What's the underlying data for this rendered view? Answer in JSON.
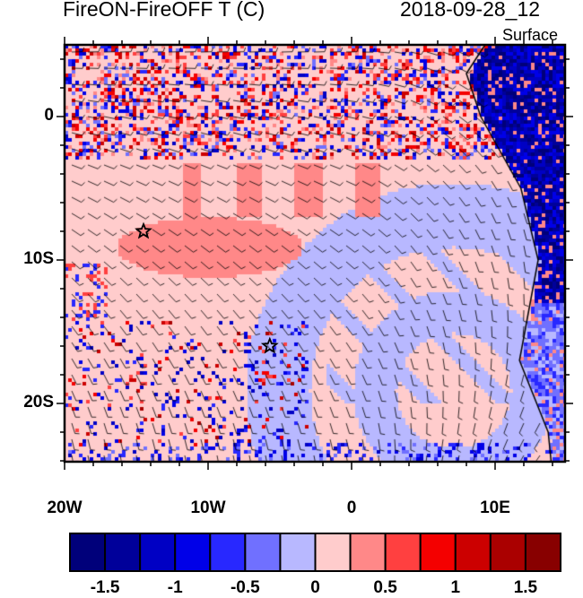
{
  "title_left": "FireON-FireOFF T (C)",
  "title_right": "2018-09-28_12",
  "level_label": "Surface",
  "chart_data": {
    "type": "heatmap",
    "variable": "Temperature difference FireON minus FireOFF",
    "units": "C",
    "lon_range": [
      -20,
      15
    ],
    "lat_range": [
      -24,
      5
    ],
    "x_ticks": [
      "20W",
      "10W",
      "0",
      "10E"
    ],
    "x_tick_values": [
      -20,
      -10,
      0,
      10
    ],
    "y_ticks": [
      "0",
      "10S",
      "20S"
    ],
    "y_tick_values": [
      0,
      -10,
      -20
    ],
    "colorbar": {
      "levels": [
        -1.5,
        -1.25,
        -1,
        -0.75,
        -0.5,
        -0.25,
        0,
        0.25,
        0.5,
        0.75,
        1,
        1.25,
        1.5
      ],
      "labels": [
        "-1.5",
        "-1",
        "-0.5",
        "0",
        "0.5",
        "1",
        "1.5"
      ],
      "colors": [
        "#00007a",
        "#00009a",
        "#0000c4",
        "#0000e8",
        "#2828ff",
        "#7070ff",
        "#b8b8ff",
        "#ffcccc",
        "#ff8888",
        "#ff4040",
        "#f40000",
        "#cc0000",
        "#aa0000",
        "#880000"
      ]
    },
    "markers": [
      {
        "type": "star",
        "lon": -14.5,
        "lat": -8
      },
      {
        "type": "star",
        "lon": -5.7,
        "lat": -16
      }
    ],
    "overlay": "wind barbs"
  }
}
